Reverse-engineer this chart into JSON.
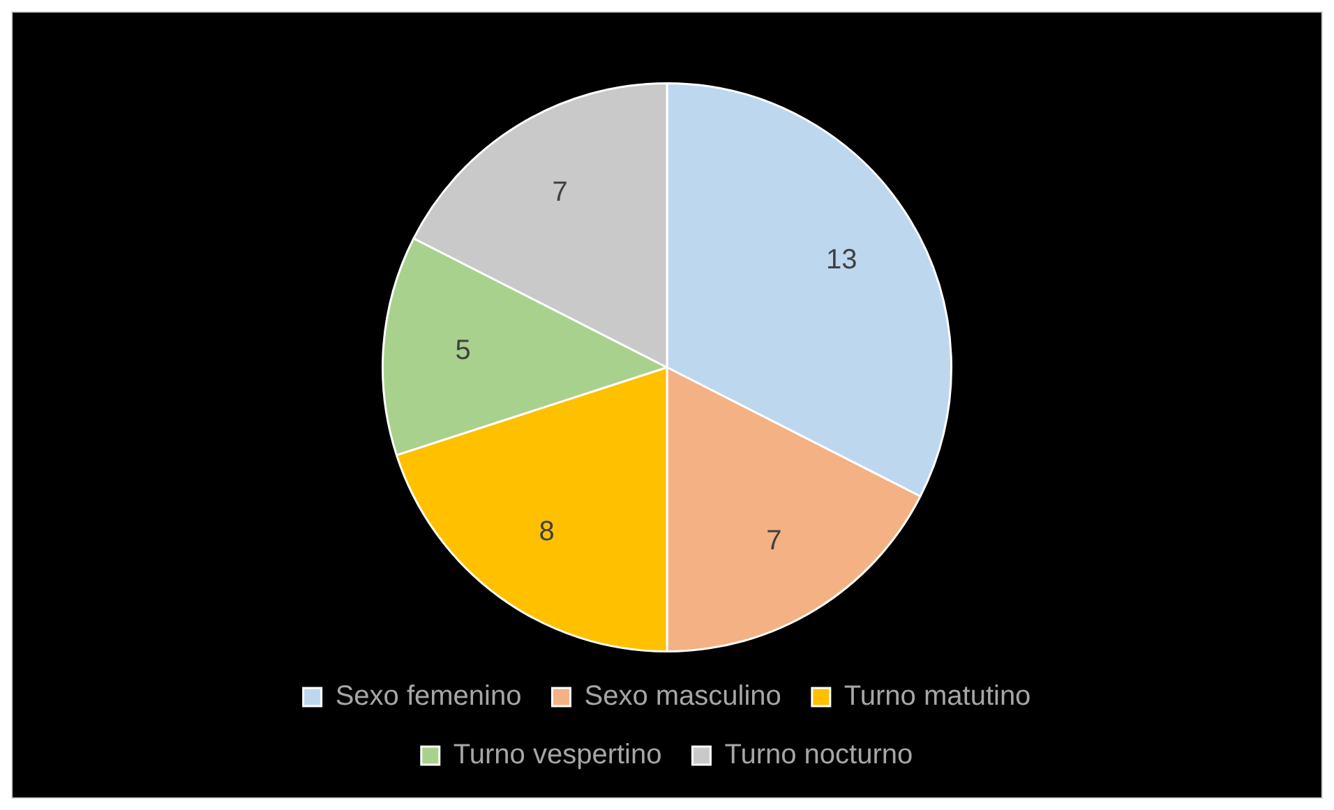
{
  "chart_data": {
    "type": "pie",
    "categories": [
      "Sexo femenino",
      "Sexo masculino",
      "Turno matutino",
      "Turno vespertino",
      "Turno nocturno"
    ],
    "values": [
      13,
      7,
      8,
      5,
      7
    ],
    "colors": [
      "#bdd7ee",
      "#f4b183",
      "#ffc000",
      "#a9d18e",
      "#c9c9c9"
    ],
    "data_labels": true,
    "legend": "bottom"
  }
}
